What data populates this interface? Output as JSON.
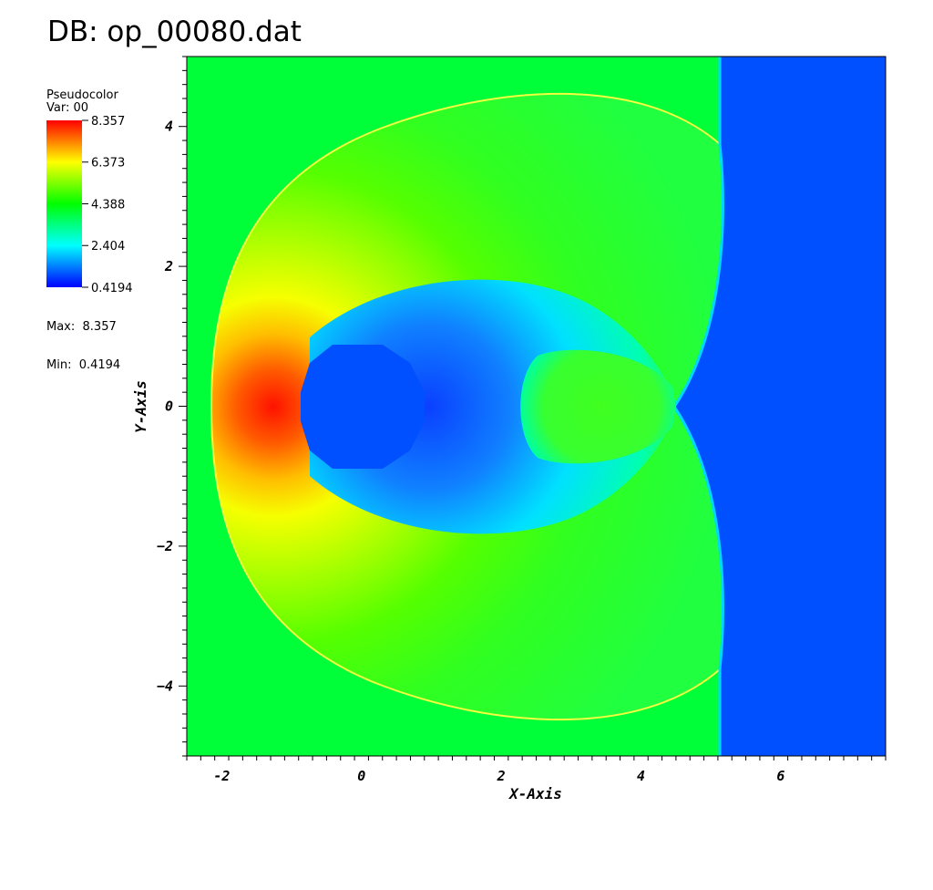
{
  "title": "DB: op_00080.dat",
  "legend": {
    "plot_type": "Pseudocolor",
    "variable": "Var: 00",
    "max_label": "Max:  8.357",
    "min_label": "Min:  0.4194",
    "tick_labels": [
      "8.357",
      "6.373",
      "4.388",
      "2.404",
      "0.4194"
    ],
    "colormap": [
      "#0000ff",
      "#00ffff",
      "#00ff00",
      "#ffff00",
      "#ff0000"
    ]
  },
  "chart_data": {
    "type": "heatmap",
    "title": "DB: op_00080.dat",
    "variable": "Var: 00",
    "xlabel": "X-Axis",
    "ylabel": "Y-Axis",
    "xlim": [
      -2.5,
      7.5
    ],
    "ylim": [
      -5,
      5
    ],
    "x_ticks": [
      -2,
      0,
      2,
      4,
      6
    ],
    "x_tick_labels": [
      "-2",
      "0",
      "2",
      "4",
      "6"
    ],
    "y_ticks": [
      4,
      2,
      0,
      -2,
      -4
    ],
    "y_tick_labels": [
      "4",
      "2",
      "0",
      "−2",
      "−4"
    ],
    "value_range": [
      0.4194,
      8.357
    ],
    "colorbar_ticks": [
      8.357,
      6.373,
      4.388,
      2.404,
      0.4194
    ],
    "colors": {
      "freestream": "#00ff38",
      "ambient_right": "#0050ff",
      "cylinder": "#0050ff",
      "stagnation_peak": "#ff1a00"
    }
  }
}
